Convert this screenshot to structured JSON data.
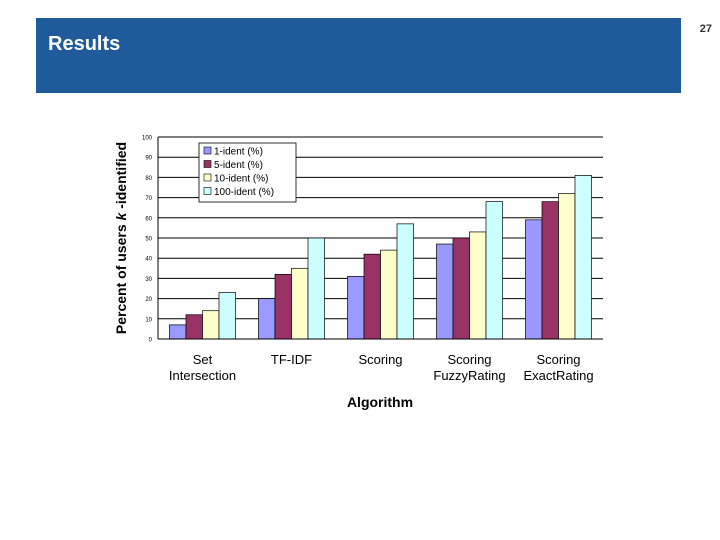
{
  "slide": {
    "title": "Results",
    "page_number": "27"
  },
  "colors": {
    "header_bg": "#1f5a9b",
    "series": [
      "#9999ff",
      "#993366",
      "#ffffcc",
      "#ccffff"
    ]
  },
  "chart_data": {
    "type": "bar",
    "title": "",
    "categories": [
      [
        "Set",
        "Intersection"
      ],
      [
        "TF-IDF"
      ],
      [
        "Scoring"
      ],
      [
        "Scoring",
        "FuzzyRating"
      ],
      [
        "Scoring",
        "ExactRating"
      ]
    ],
    "series": [
      {
        "name": "1-ident (%)",
        "values": [
          7,
          20,
          31,
          47,
          59
        ]
      },
      {
        "name": "5-ident (%)",
        "values": [
          12,
          32,
          42,
          50,
          68
        ]
      },
      {
        "name": "10-ident (%)",
        "values": [
          14,
          35,
          44,
          53,
          72
        ]
      },
      {
        "name": "100-ident (%)",
        "values": [
          23,
          50,
          57,
          68,
          81
        ]
      }
    ],
    "xlabel": "Algorithm",
    "ylabel_prefix": "Percent of users ",
    "ylabel_italic": "k",
    "ylabel_suffix": " -identified",
    "ylim": [
      0,
      100
    ],
    "yticks": [
      0,
      10,
      20,
      30,
      40,
      50,
      60,
      70,
      80,
      90,
      100
    ],
    "grid": true,
    "legend_position": "top-left"
  }
}
